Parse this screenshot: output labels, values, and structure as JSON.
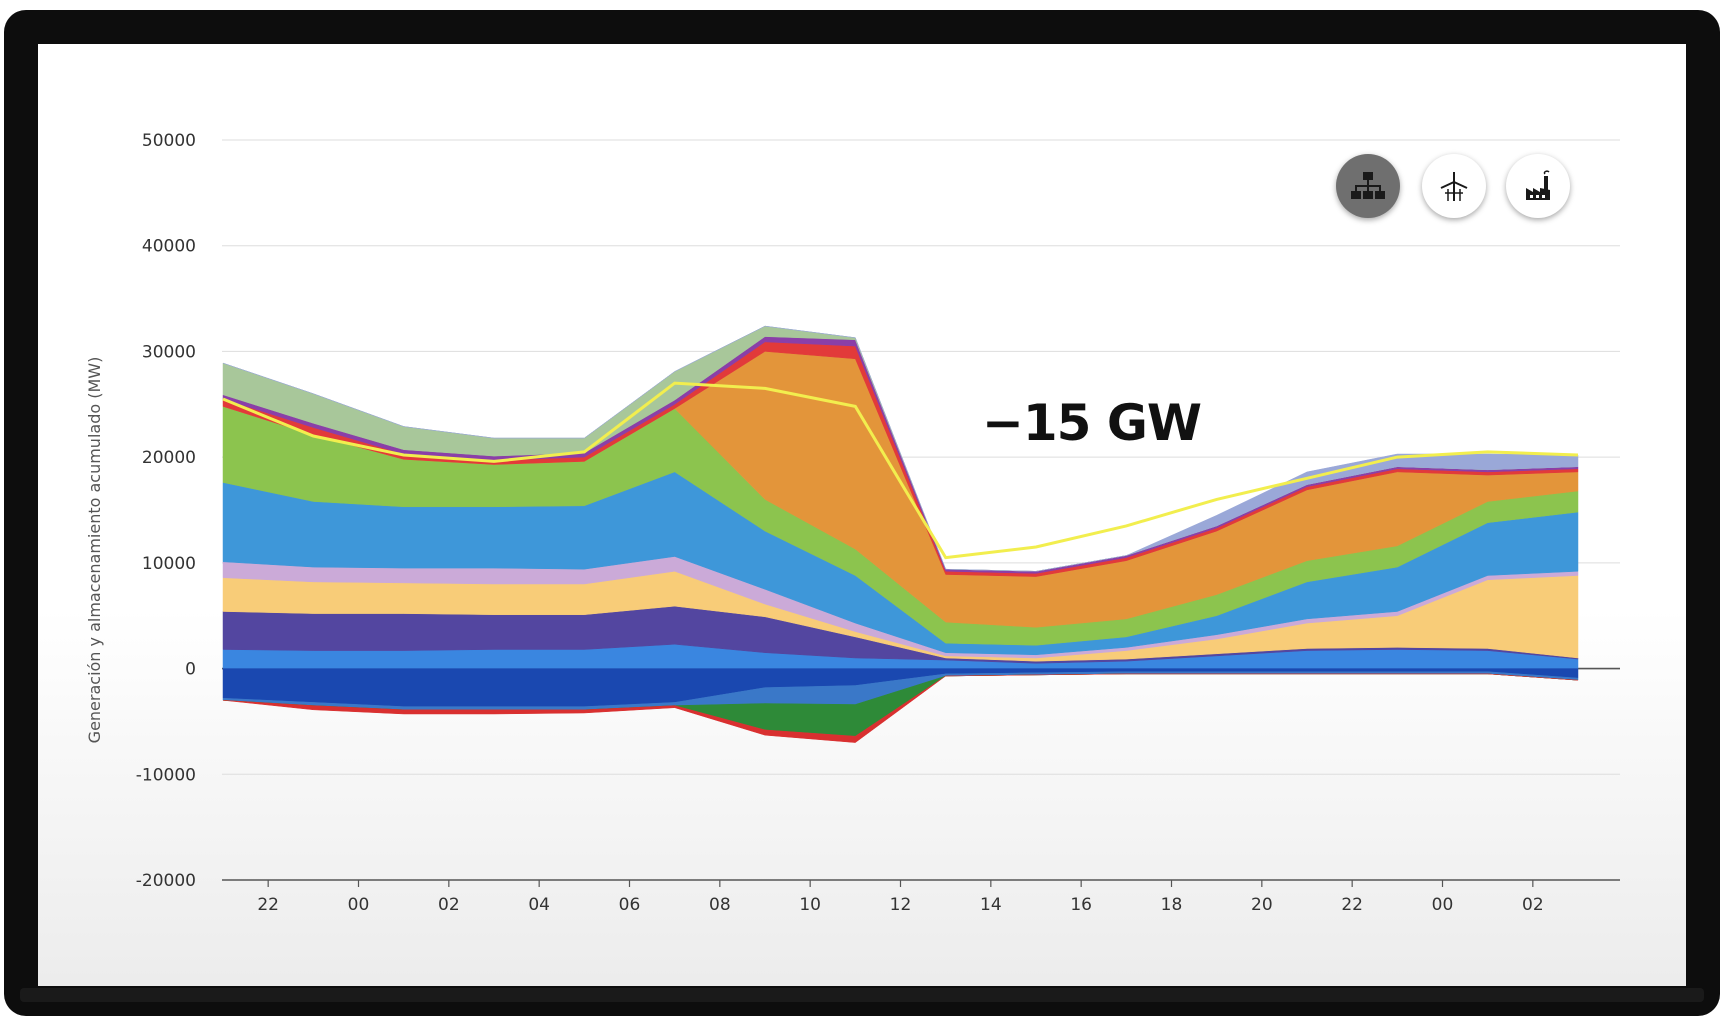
{
  "chart_data": {
    "type": "area",
    "ylabel": "Generación y almacenamiento acumulado (MW)",
    "xlabel": "",
    "ylim": [
      -20000,
      50000
    ],
    "yticks": [
      50000,
      40000,
      30000,
      20000,
      10000,
      0,
      -10000,
      -20000
    ],
    "xticks": [
      "22",
      "00",
      "02",
      "04",
      "06",
      "08",
      "10",
      "12",
      "14",
      "16",
      "18",
      "20",
      "22",
      "00",
      "02"
    ],
    "x_hours": [
      0,
      2,
      4,
      6,
      8,
      10,
      12,
      14,
      16,
      18,
      20,
      22,
      24,
      26,
      28,
      30
    ],
    "grid": true,
    "annotation": "−15 GW",
    "positive_series": [
      {
        "color": "#3a86e0",
        "values": [
          1800,
          1700,
          1700,
          1800,
          1800,
          2300,
          1500,
          1000,
          800,
          500,
          700,
          1200,
          1700,
          1800,
          1700,
          900
        ]
      },
      {
        "color": "#5346a0",
        "values": [
          3600,
          3500,
          3500,
          3300,
          3300,
          3600,
          3400,
          2000,
          200,
          200,
          200,
          200,
          200,
          200,
          200,
          100
        ]
      },
      {
        "color": "#f8cc78",
        "values": [
          3200,
          3000,
          2900,
          2900,
          2900,
          3300,
          1200,
          500,
          200,
          300,
          800,
          1400,
          2400,
          3000,
          6500,
          7800
        ]
      },
      {
        "color": "#cbaad8",
        "values": [
          1500,
          1400,
          1400,
          1500,
          1400,
          1400,
          1400,
          800,
          300,
          300,
          300,
          400,
          400,
          400,
          400,
          400
        ]
      },
      {
        "color": "#3e97d9",
        "values": [
          7500,
          6200,
          5800,
          5800,
          6000,
          8000,
          5500,
          4500,
          900,
          900,
          1000,
          1800,
          3500,
          4200,
          5000,
          5600
        ]
      },
      {
        "color": "#8cc44e",
        "values": [
          7200,
          6300,
          4500,
          4000,
          4200,
          6000,
          3000,
          2500,
          2000,
          1700,
          1700,
          2000,
          2000,
          2000,
          2000,
          2000
        ]
      },
      {
        "color": "#e3953a",
        "values": [
          0,
          0,
          0,
          0,
          0,
          0,
          14000,
          18000,
          4500,
          4800,
          5500,
          6000,
          6700,
          7000,
          2500,
          1800
        ]
      },
      {
        "color": "#e23a3a",
        "values": [
          700,
          700,
          500,
          400,
          400,
          400,
          900,
          1200,
          300,
          300,
          300,
          300,
          300,
          300,
          300,
          300
        ]
      },
      {
        "color": "#8a3fa8",
        "values": [
          400,
          400,
          400,
          400,
          400,
          400,
          500,
          600,
          200,
          200,
          200,
          200,
          200,
          200,
          200,
          200
        ]
      },
      {
        "color": "#a8c79a",
        "values": [
          3000,
          2800,
          2200,
          1700,
          1400,
          2700,
          1000,
          200,
          0,
          0,
          0,
          0,
          0,
          0,
          0,
          0
        ]
      },
      {
        "color": "#9aa8d8",
        "values": [
          0,
          0,
          0,
          0,
          0,
          0,
          0,
          0,
          0,
          0,
          0,
          1000,
          1200,
          1200,
          1500,
          1100
        ]
      }
    ],
    "negative_series": [
      {
        "color": "#1a48b0",
        "values": [
          -2800,
          -3200,
          -3600,
          -3600,
          -3600,
          -3200,
          -1800,
          -1600,
          -500,
          -400,
          -300,
          -300,
          -300,
          -300,
          -300,
          -900
        ]
      },
      {
        "color": "#3a78c8",
        "values": [
          -200,
          -300,
          -300,
          -300,
          -300,
          -300,
          -1500,
          -1800,
          -200,
          -200,
          -200,
          -200,
          -200,
          -200,
          -200,
          -200
        ]
      },
      {
        "color": "#2e8a38",
        "values": [
          0,
          0,
          0,
          0,
          0,
          0,
          -2500,
          -3000,
          0,
          0,
          0,
          0,
          0,
          0,
          0,
          0
        ]
      },
      {
        "color": "#d93030",
        "values": [
          0,
          -400,
          -400,
          -400,
          -300,
          -200,
          -500,
          -600,
          0,
          0,
          0,
          0,
          0,
          0,
          0,
          0
        ]
      }
    ],
    "demand_line": {
      "color": "#f2ee4e",
      "values": [
        25500,
        22000,
        20200,
        19600,
        20500,
        27000,
        26500,
        24800,
        10500,
        11500,
        13500,
        16000,
        18000,
        20000,
        20500,
        20200
      ]
    }
  },
  "toolbar": {
    "buttons": [
      {
        "icon": "network-hierarchy-icon",
        "active": true
      },
      {
        "icon": "wind-turbine-icon",
        "active": false
      },
      {
        "icon": "factory-icon",
        "active": false
      }
    ]
  },
  "colors": {
    "frame": "#0d0d0d",
    "grid": "#dddddd",
    "zero_line": "#555555"
  }
}
